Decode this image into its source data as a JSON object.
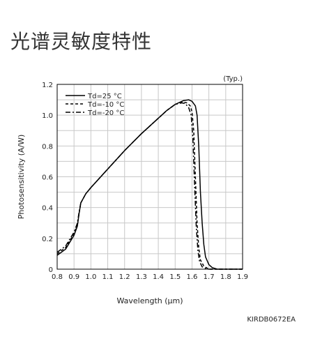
{
  "page": {
    "title": "光谱灵敏度特性",
    "doc_code": "KIRDB0672EA"
  },
  "chart_data": {
    "type": "line",
    "title": "",
    "annotation": "(Typ.)",
    "xlabel": "Wavelength (µm)",
    "ylabel": "Photosensitivity (A/W)",
    "xlim": [
      0.8,
      1.9
    ],
    "ylim": [
      0,
      1.2
    ],
    "x_ticks": [
      "0.8",
      "0.9",
      "1.0",
      "1.1",
      "1.2",
      "1.3",
      "1.4",
      "1.5",
      "1.6",
      "1.7",
      "1.8",
      "1.9"
    ],
    "y_ticks": [
      "0",
      "0.2",
      "0.4",
      "0.6",
      "0.8",
      "1.0",
      "1.2"
    ],
    "grid": true,
    "legend_position": "top-left",
    "series": [
      {
        "name": "Td=25 °C",
        "style": "solid",
        "color": "#000000",
        "points": [
          [
            0.8,
            0.09
          ],
          [
            0.85,
            0.13
          ],
          [
            0.9,
            0.22
          ],
          [
            0.92,
            0.28
          ],
          [
            0.93,
            0.36
          ],
          [
            0.94,
            0.43
          ],
          [
            0.97,
            0.49
          ],
          [
            1.0,
            0.53
          ],
          [
            1.1,
            0.65
          ],
          [
            1.2,
            0.77
          ],
          [
            1.3,
            0.88
          ],
          [
            1.4,
            0.98
          ],
          [
            1.45,
            1.03
          ],
          [
            1.5,
            1.07
          ],
          [
            1.55,
            1.095
          ],
          [
            1.58,
            1.1
          ],
          [
            1.6,
            1.09
          ],
          [
            1.62,
            1.06
          ],
          [
            1.63,
            1.0
          ],
          [
            1.64,
            0.8
          ],
          [
            1.65,
            0.5
          ],
          [
            1.66,
            0.3
          ],
          [
            1.67,
            0.16
          ],
          [
            1.68,
            0.08
          ],
          [
            1.7,
            0.03
          ],
          [
            1.72,
            0.01
          ],
          [
            1.75,
            0.0
          ],
          [
            1.9,
            0.0
          ]
        ]
      },
      {
        "name": "Td=-10 °C",
        "style": "dashed",
        "color": "#000000",
        "points": [
          [
            0.8,
            0.1
          ],
          [
            0.85,
            0.14
          ],
          [
            0.9,
            0.23
          ],
          [
            0.92,
            0.29
          ],
          [
            0.93,
            0.36
          ],
          [
            0.94,
            0.43
          ],
          [
            0.97,
            0.49
          ],
          [
            1.0,
            0.53
          ],
          [
            1.1,
            0.65
          ],
          [
            1.2,
            0.77
          ],
          [
            1.3,
            0.88
          ],
          [
            1.4,
            0.98
          ],
          [
            1.45,
            1.03
          ],
          [
            1.5,
            1.07
          ],
          [
            1.54,
            1.085
          ],
          [
            1.57,
            1.08
          ],
          [
            1.59,
            1.06
          ],
          [
            1.6,
            1.02
          ],
          [
            1.61,
            0.9
          ],
          [
            1.62,
            0.6
          ],
          [
            1.63,
            0.3
          ],
          [
            1.64,
            0.14
          ],
          [
            1.65,
            0.06
          ],
          [
            1.67,
            0.02
          ],
          [
            1.7,
            0.0
          ],
          [
            1.9,
            0.0
          ]
        ]
      },
      {
        "name": "Td=-20 °C",
        "style": "dashdot",
        "color": "#000000",
        "points": [
          [
            0.8,
            0.11
          ],
          [
            0.85,
            0.15
          ],
          [
            0.9,
            0.24
          ],
          [
            0.92,
            0.3
          ],
          [
            0.93,
            0.37
          ],
          [
            0.94,
            0.43
          ],
          [
            0.97,
            0.49
          ],
          [
            1.0,
            0.53
          ],
          [
            1.1,
            0.65
          ],
          [
            1.2,
            0.77
          ],
          [
            1.3,
            0.88
          ],
          [
            1.4,
            0.98
          ],
          [
            1.45,
            1.03
          ],
          [
            1.5,
            1.07
          ],
          [
            1.54,
            1.08
          ],
          [
            1.56,
            1.075
          ],
          [
            1.58,
            1.05
          ],
          [
            1.595,
            1.0
          ],
          [
            1.605,
            0.85
          ],
          [
            1.615,
            0.55
          ],
          [
            1.625,
            0.28
          ],
          [
            1.635,
            0.12
          ],
          [
            1.645,
            0.05
          ],
          [
            1.66,
            0.015
          ],
          [
            1.69,
            0.0
          ],
          [
            1.9,
            0.0
          ]
        ]
      }
    ]
  }
}
